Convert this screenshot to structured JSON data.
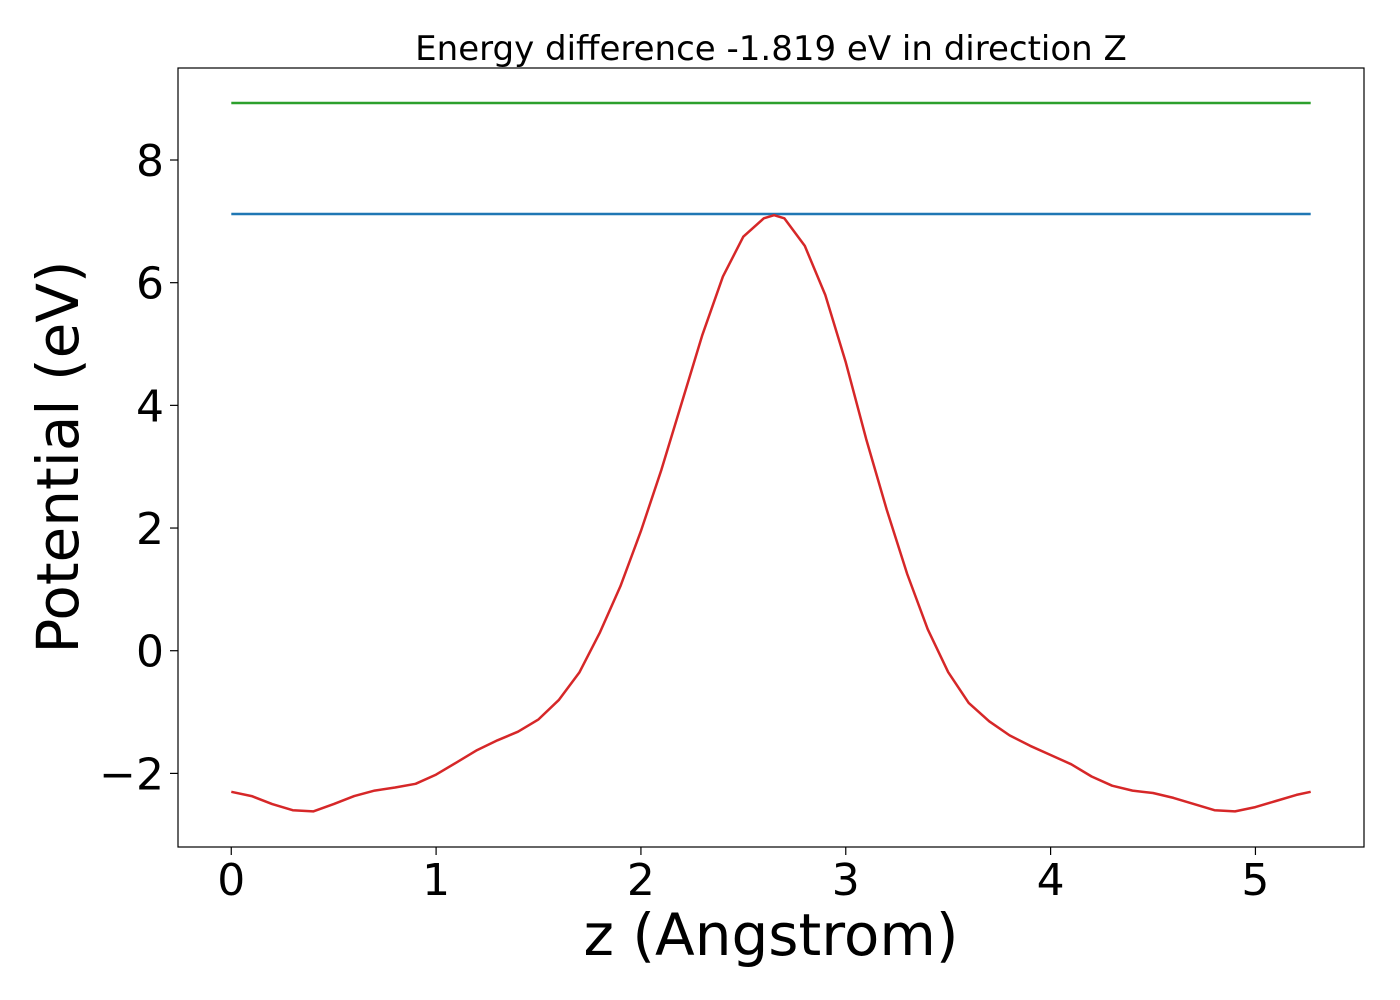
{
  "chart_data": {
    "type": "line",
    "title": "Energy difference -1.819 eV in direction Z",
    "xlabel": "z (Angstrom)",
    "ylabel": "Potential (eV)",
    "xlim": [
      -0.26,
      5.53
    ],
    "ylim": [
      -3.2,
      9.5
    ],
    "xticks": [
      0,
      1,
      2,
      3,
      4,
      5
    ],
    "xtick_labels": [
      "0",
      "1",
      "2",
      "3",
      "4",
      "5"
    ],
    "yticks": [
      -2,
      0,
      2,
      4,
      6,
      8
    ],
    "ytick_labels": [
      "−2",
      "0",
      "2",
      "4",
      "6",
      "8"
    ],
    "grid": false,
    "series": [
      {
        "color": "#2ca02c",
        "x": [
          0,
          5.27
        ],
        "y": [
          8.93,
          8.93
        ]
      },
      {
        "color": "#1f77b4",
        "x": [
          0,
          5.27
        ],
        "y": [
          7.12,
          7.12
        ]
      },
      {
        "color": "#d62728",
        "x": [
          0,
          0.1,
          0.2,
          0.3,
          0.4,
          0.5,
          0.6,
          0.7,
          0.8,
          0.9,
          1.0,
          1.1,
          1.2,
          1.3,
          1.4,
          1.5,
          1.6,
          1.7,
          1.8,
          1.9,
          2.0,
          2.1,
          2.2,
          2.3,
          2.4,
          2.5,
          2.6,
          2.65,
          2.7,
          2.8,
          2.9,
          3.0,
          3.1,
          3.2,
          3.3,
          3.4,
          3.5,
          3.6,
          3.7,
          3.8,
          3.9,
          4.0,
          4.1,
          4.2,
          4.3,
          4.4,
          4.5,
          4.6,
          4.7,
          4.8,
          4.9,
          5.0,
          5.1,
          5.2,
          5.27
        ],
        "y": [
          -2.3,
          -2.37,
          -2.5,
          -2.6,
          -2.62,
          -2.5,
          -2.37,
          -2.28,
          -2.23,
          -2.17,
          -2.02,
          -1.82,
          -1.62,
          -1.46,
          -1.32,
          -1.12,
          -0.8,
          -0.35,
          0.3,
          1.05,
          1.95,
          2.95,
          4.05,
          5.15,
          6.1,
          6.75,
          7.05,
          7.1,
          7.05,
          6.6,
          5.8,
          4.7,
          3.45,
          2.3,
          1.25,
          0.35,
          -0.35,
          -0.85,
          -1.15,
          -1.38,
          -1.55,
          -1.7,
          -1.85,
          -2.05,
          -2.2,
          -2.28,
          -2.32,
          -2.4,
          -2.5,
          -2.6,
          -2.62,
          -2.55,
          -2.45,
          -2.35,
          -2.3
        ]
      }
    ]
  }
}
